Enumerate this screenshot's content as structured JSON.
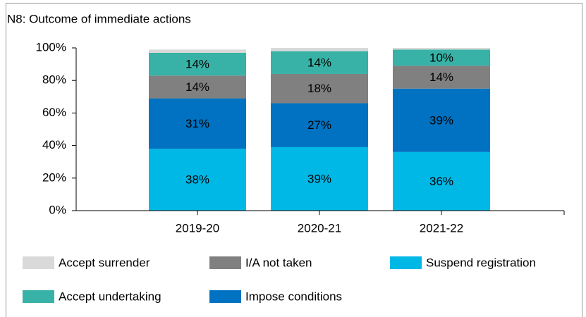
{
  "chart_data": {
    "type": "stacked_bar",
    "title": "N8: Outcome of immediate actions",
    "categories": [
      "2019-20",
      "2020-21",
      "2021-22"
    ],
    "series": [
      {
        "name": "Suspend registration",
        "color": "#00b8e6",
        "values": [
          38,
          39,
          36
        ],
        "value_labels": [
          "38%",
          "39%",
          "36%"
        ]
      },
      {
        "name": "Impose conditions",
        "color": "#0072c1",
        "values": [
          31,
          27,
          39
        ],
        "value_labels": [
          "31%",
          "27%",
          "39%"
        ]
      },
      {
        "name": "I/A not taken",
        "color": "#808080",
        "values": [
          14,
          18,
          14
        ],
        "value_labels": [
          "14%",
          "18%",
          "14%"
        ]
      },
      {
        "name": "Accept undertaking",
        "color": "#38b2a6",
        "values": [
          14,
          14,
          10
        ],
        "value_labels": [
          "14%",
          "14%",
          "10%"
        ]
      },
      {
        "name": "Accept surrender",
        "color": "#d9d9d9",
        "values": [
          2,
          2,
          1
        ]
      }
    ],
    "ylim": [
      0,
      100
    ],
    "yticks": [
      {
        "value": 0,
        "label": "0%"
      },
      {
        "value": 20,
        "label": "20%"
      },
      {
        "value": 40,
        "label": "40%"
      },
      {
        "value": 60,
        "label": "60%"
      },
      {
        "value": 80,
        "label": "80%"
      },
      {
        "value": 100,
        "label": "100%"
      }
    ],
    "grid": false
  }
}
